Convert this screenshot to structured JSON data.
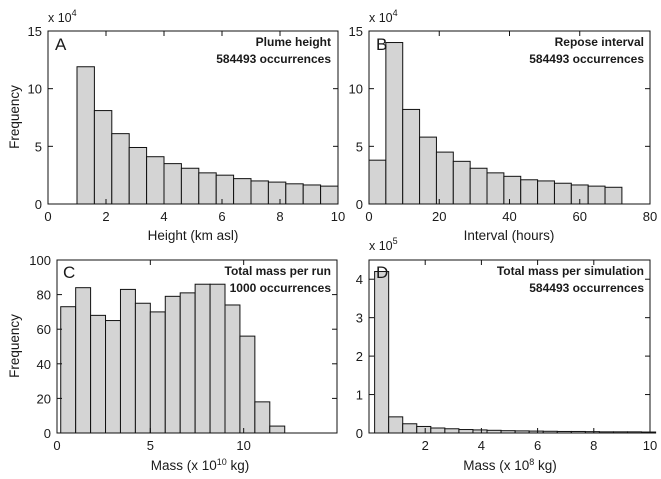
{
  "chart_data": [
    {
      "id": "A",
      "type": "bar",
      "panel_letter": "A",
      "annotation_title": "Plume height",
      "annotation_count": "584493 occurrences",
      "xlabel": "Height (km asl)",
      "ylabel": "Frequency",
      "y_exponent_label": "x 10",
      "y_exponent_sup": "4",
      "xlim": [
        0,
        10
      ],
      "ylim": [
        0,
        15
      ],
      "xticks": [
        0,
        2,
        4,
        6,
        8,
        10
      ],
      "yticks": [
        0,
        5,
        10,
        15
      ],
      "bin_edges": [
        1,
        1.6,
        2.2,
        2.8,
        3.4,
        4.0,
        4.6,
        5.2,
        5.8,
        6.4,
        7.0,
        7.6,
        8.2,
        8.8,
        9.4,
        10.0
      ],
      "values": [
        11.9,
        8.1,
        6.1,
        4.9,
        4.1,
        3.5,
        3.1,
        2.7,
        2.5,
        2.2,
        2.0,
        1.9,
        1.75,
        1.65,
        1.55
      ],
      "value_unit": "x 10^4"
    },
    {
      "id": "B",
      "type": "bar",
      "panel_letter": "B",
      "annotation_title": "Repose interval",
      "annotation_count": "584493 occurrences",
      "xlabel": "Interval (hours)",
      "ylabel": "",
      "y_exponent_label": "x 10",
      "y_exponent_sup": "4",
      "xlim": [
        0,
        80
      ],
      "ylim": [
        0,
        15
      ],
      "xticks": [
        0,
        20,
        40,
        60,
        80
      ],
      "yticks": [
        0,
        5,
        10,
        15
      ],
      "bin_edges": [
        0,
        4.8,
        9.6,
        14.4,
        19.2,
        24,
        28.8,
        33.6,
        38.4,
        43.2,
        48,
        52.8,
        57.6,
        62.4,
        67.2,
        72
      ],
      "values": [
        3.8,
        14.0,
        8.2,
        5.8,
        4.5,
        3.7,
        3.1,
        2.7,
        2.4,
        2.1,
        2.0,
        1.8,
        1.65,
        1.55,
        1.45
      ],
      "value_unit": "x 10^4"
    },
    {
      "id": "C",
      "type": "bar",
      "panel_letter": "C",
      "annotation_title": "Total mass per run",
      "annotation_count": "1000 occurrences",
      "xlabel": "Mass (x 10",
      "xlabel_sup": "10",
      "xlabel_suffix": " kg)",
      "ylabel": "Frequency",
      "xlim": [
        0,
        15
      ],
      "ylim": [
        0,
        100
      ],
      "xticks": [
        0,
        5,
        10
      ],
      "yticks": [
        0,
        20,
        40,
        60,
        80,
        100
      ],
      "bin_edges": [
        0.2,
        1.0,
        1.8,
        2.6,
        3.4,
        4.2,
        5.0,
        5.8,
        6.6,
        7.4,
        8.2,
        9.0,
        9.8,
        10.6,
        11.4,
        12.2,
        13.0,
        13.8
      ],
      "values": [
        73,
        84,
        68,
        65,
        83,
        75,
        70,
        79,
        81,
        86,
        86,
        74,
        56,
        18,
        4,
        0,
        0
      ]
    },
    {
      "id": "D",
      "type": "bar",
      "panel_letter": "D",
      "annotation_title": "Total mass per simulation",
      "annotation_count": "584493 occurrences",
      "xlabel": "Mass (x 10",
      "xlabel_sup": "8",
      "xlabel_suffix": " kg)",
      "ylabel": "",
      "y_exponent_label": "x 10",
      "y_exponent_sup": "5",
      "xlim": [
        0,
        10
      ],
      "ylim": [
        0,
        4.5
      ],
      "xticks": [
        2,
        4,
        6,
        8,
        10
      ],
      "yticks": [
        0,
        1,
        2,
        3,
        4
      ],
      "bin_edges": [
        0.2,
        0.7,
        1.2,
        1.7,
        2.2,
        2.7,
        3.2,
        3.7,
        4.2,
        4.7,
        5.2,
        5.7,
        6.2,
        6.7,
        7.2,
        7.7,
        8.2,
        8.7,
        9.2,
        9.7,
        10.2
      ],
      "values": [
        4.2,
        0.42,
        0.24,
        0.17,
        0.13,
        0.11,
        0.09,
        0.08,
        0.07,
        0.06,
        0.055,
        0.05,
        0.045,
        0.04,
        0.04,
        0.035,
        0.03,
        0.03,
        0.03,
        0.025
      ],
      "value_unit": "x 10^5"
    }
  ]
}
